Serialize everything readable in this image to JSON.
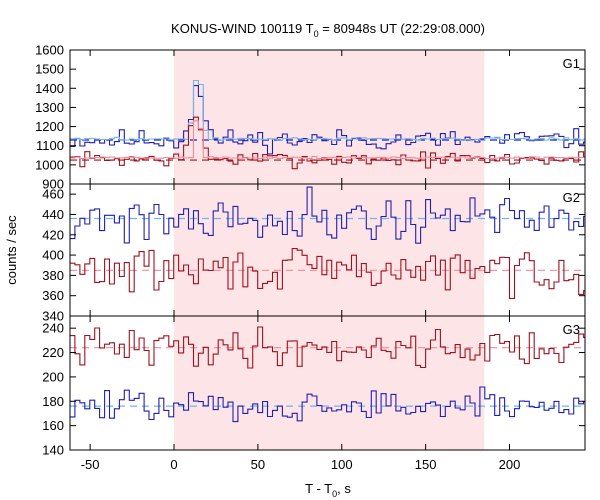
{
  "chart_data": {
    "type": "line",
    "title": {
      "prefix": "KONUS-WIND 100119 T",
      "sub": "0",
      "suffix": " = 80948s UT (22:29:08.000)"
    },
    "xlabel": {
      "prefix": "T - T",
      "sub": "0",
      "suffix": ", s"
    },
    "ylabel": "counts / sec",
    "xlim": [
      -62,
      245
    ],
    "xticks": [
      -50,
      0,
      50,
      100,
      150,
      200
    ],
    "bin_width": 2.944,
    "highlight_interval": [
      0,
      185
    ],
    "colors": {
      "highlight": "#fde4e6",
      "blue": "#1f1fb4",
      "lightblue": "#6fb4ef",
      "red": "#a0101e",
      "pink": "#f08a9a",
      "darkred": "#9e1218"
    },
    "panels": [
      {
        "label": "G1",
        "ylim": [
          900,
          1600
        ],
        "yticks": [
          900,
          1000,
          1100,
          1200,
          1300,
          1400,
          1500,
          1600
        ],
        "series": [
          {
            "color": "blue",
            "mean": 1130,
            "noise": 38,
            "seed": 11,
            "bumps": [
              {
                "t": 8,
                "v": 1180
              },
              {
                "t": 10,
                "v": 1240
              },
              {
                "t": 12,
                "v": 1330
              },
              {
                "t": 14,
                "v": 1420
              },
              {
                "t": 15,
                "v": 1480
              },
              {
                "t": 17,
                "v": 1360
              },
              {
                "t": 19,
                "v": 1230
              },
              {
                "t": 21,
                "v": 1180
              }
            ]
          },
          {
            "color": "lightblue",
            "mean": 1135,
            "noise": 5,
            "seed": 3,
            "bumps": [
              {
                "t": 10,
                "v": 1220
              },
              {
                "t": 12,
                "v": 1340
              },
              {
                "t": 14,
                "v": 1440
              },
              {
                "t": 16,
                "v": 1420
              },
              {
                "t": 18,
                "v": 1280
              },
              {
                "t": 20,
                "v": 1180
              }
            ]
          },
          {
            "color": "red",
            "mean": 1030,
            "noise": 28,
            "seed": 7,
            "bumps": [
              {
                "t": 8,
                "v": 1100
              },
              {
                "t": 11,
                "v": 1200
              },
              {
                "t": 14,
                "v": 1250
              },
              {
                "t": 16,
                "v": 1180
              },
              {
                "t": 19,
                "v": 1090
              }
            ]
          },
          {
            "color": "pink",
            "mean": 1038,
            "noise": 4,
            "seed": 5,
            "bumps": [
              {
                "t": 12,
                "v": 1160
              },
              {
                "t": 14,
                "v": 1230
              },
              {
                "t": 16,
                "v": 1190
              }
            ]
          }
        ],
        "baselines": [
          {
            "color": "blue",
            "value": 1130
          },
          {
            "color": "darkred",
            "value": 1025
          }
        ]
      },
      {
        "label": "G2",
        "ylim": [
          340,
          470
        ],
        "yticks": [
          340,
          360,
          380,
          400,
          420,
          440,
          460
        ],
        "series": [
          {
            "color": "blue",
            "mean": 437,
            "noise": 17,
            "seed": 21,
            "bumps": []
          },
          {
            "color": "red",
            "mean": 385,
            "noise": 15,
            "seed": 29,
            "bumps": []
          }
        ],
        "baselines": [
          {
            "color": "lightblue",
            "value": 436
          },
          {
            "color": "pink",
            "value": 385
          }
        ]
      },
      {
        "label": "G3",
        "ylim": [
          140,
          250
        ],
        "yticks": [
          140,
          160,
          180,
          200,
          220,
          240
        ],
        "series": [
          {
            "color": "red",
            "mean": 224,
            "noise": 11,
            "seed": 41,
            "bumps": []
          },
          {
            "color": "blue",
            "mean": 176,
            "noise": 9,
            "seed": 47,
            "bumps": []
          }
        ],
        "baselines": [
          {
            "color": "pink",
            "value": 224
          },
          {
            "color": "lightblue",
            "value": 176
          }
        ]
      }
    ]
  }
}
